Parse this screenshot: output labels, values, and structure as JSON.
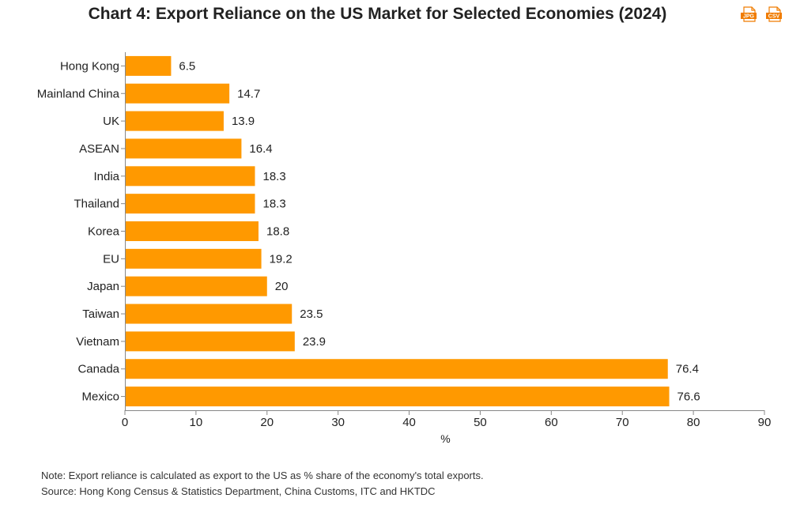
{
  "chart_data": {
    "type": "bar",
    "orientation": "horizontal",
    "title": "Chart 4: Export Reliance on the US Market for Selected Economies (2024)",
    "xlabel": "%",
    "ylabel": "",
    "xlim": [
      0,
      90
    ],
    "x_ticks": [
      "0",
      "10",
      "20",
      "30",
      "40",
      "50",
      "60",
      "70",
      "80",
      "90"
    ],
    "categories": [
      "Hong Kong",
      "Mainland China",
      "UK",
      "ASEAN",
      "India",
      "Thailand",
      "Korea",
      "EU",
      "Japan",
      "Taiwan",
      "Vietnam",
      "Canada",
      "Mexico"
    ],
    "values": [
      6.5,
      14.7,
      13.9,
      16.4,
      18.3,
      18.3,
      18.8,
      19.2,
      20,
      23.5,
      23.9,
      76.4,
      76.6
    ],
    "data_labels": [
      "6.5",
      "14.7",
      "13.9",
      "16.4",
      "18.3",
      "18.3",
      "18.8",
      "19.2",
      "20",
      "23.5",
      "23.9",
      "76.4",
      "76.6"
    ],
    "bar_color": "#FF9900",
    "grid": false,
    "legend": "none"
  },
  "downloads": {
    "jpg_label": "JPG",
    "csv_label": "CSV",
    "jpg_icon": "jpg-file-icon",
    "csv_icon": "csv-file-icon",
    "icon_color": "#F07C00"
  },
  "notes": {
    "note": "Note: Export reliance is calculated as export to the US as % share of the economy's total exports.",
    "source": "Source: Hong Kong Census & Statistics Department, China Customs, ITC and HKTDC"
  }
}
